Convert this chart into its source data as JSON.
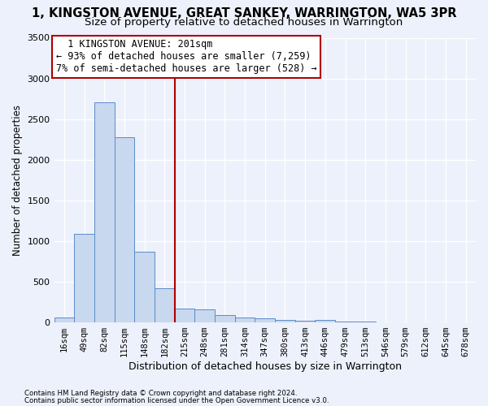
{
  "title": "1, KINGSTON AVENUE, GREAT SANKEY, WARRINGTON, WA5 3PR",
  "subtitle": "Size of property relative to detached houses in Warrington",
  "xlabel": "Distribution of detached houses by size in Warrington",
  "ylabel": "Number of detached properties",
  "bar_color": "#c8d8ee",
  "bar_edge_color": "#5b8cc8",
  "categories": [
    "16sqm",
    "49sqm",
    "82sqm",
    "115sqm",
    "148sqm",
    "182sqm",
    "215sqm",
    "248sqm",
    "281sqm",
    "314sqm",
    "347sqm",
    "380sqm",
    "413sqm",
    "446sqm",
    "479sqm",
    "513sqm",
    "546sqm",
    "579sqm",
    "612sqm",
    "645sqm",
    "678sqm"
  ],
  "values": [
    55,
    1090,
    2710,
    2280,
    870,
    420,
    165,
    160,
    90,
    55,
    45,
    30,
    20,
    25,
    5,
    5,
    0,
    0,
    0,
    0,
    0
  ],
  "ylim": [
    0,
    3500
  ],
  "yticks": [
    0,
    500,
    1000,
    1500,
    2000,
    2500,
    3000,
    3500
  ],
  "property_line_x": 5.5,
  "property_line_color": "#b00000",
  "annotation_text": "  1 KINGSTON AVENUE: 201sqm  \n← 93% of detached houses are smaller (7,259)\n7% of semi-detached houses are larger (528) →",
  "annotation_box_color": "white",
  "annotation_border_color": "#b00000",
  "footer_line1": "Contains HM Land Registry data © Crown copyright and database right 2024.",
  "footer_line2": "Contains public sector information licensed under the Open Government Licence v3.0.",
  "background_color": "#edf1fb",
  "grid_color": "#ffffff",
  "title_fontsize": 10.5,
  "subtitle_fontsize": 9.5,
  "annotation_fontsize": 8.5,
  "tick_fontsize": 7.5,
  "ylabel_fontsize": 8.5,
  "xlabel_fontsize": 9
}
